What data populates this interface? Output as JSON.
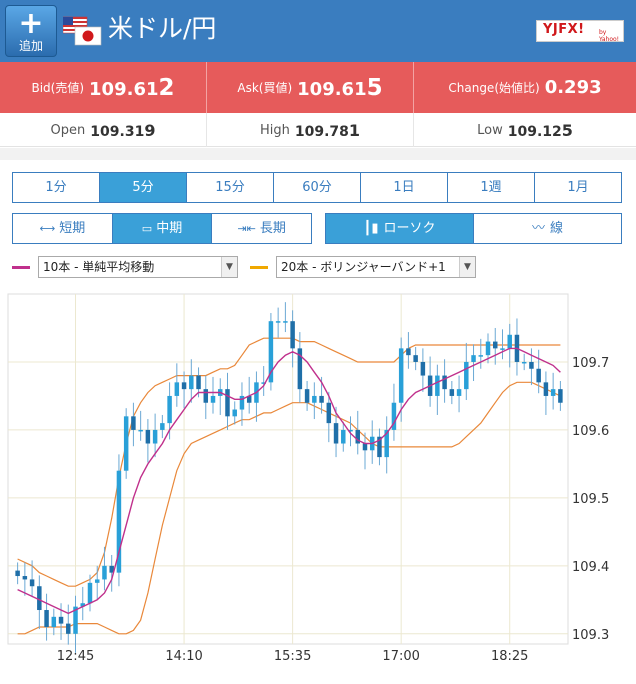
{
  "header": {
    "add_label": "追加",
    "pair_title": "米ドル/円",
    "logo_text": "YJFX!",
    "logo_sub": "by Yahoo!",
    "accent": "#3a7dbf"
  },
  "quote": {
    "bid_label": "Bid(売値)",
    "bid_main": "109.61",
    "bid_last": "2",
    "ask_label": "Ask(買値)",
    "ask_main": "109.61",
    "ask_last": "5",
    "change_label": "Change(始値比)",
    "change_value": "0.293",
    "band_color": "#e65b5b"
  },
  "stats": {
    "open_label": "Open",
    "open_main": "109.31",
    "open_last": "9",
    "high_label": "High",
    "high_main": "109.78",
    "high_last": "1",
    "low_label": "Low",
    "low_main": "109.12",
    "low_last": "5"
  },
  "timeframes": [
    {
      "label": "1分",
      "active": false
    },
    {
      "label": "5分",
      "active": true
    },
    {
      "label": "15分",
      "active": false
    },
    {
      "label": "60分",
      "active": false
    },
    {
      "label": "1日",
      "active": false
    },
    {
      "label": "1週",
      "active": false
    },
    {
      "label": "1月",
      "active": false
    }
  ],
  "terms": [
    {
      "label": "短期",
      "icon": "expand-arrows-icon",
      "active": false
    },
    {
      "label": "中期",
      "icon": "window-icon",
      "active": true
    },
    {
      "label": "長期",
      "icon": "collapse-arrows-icon",
      "active": false
    }
  ],
  "chart_types": [
    {
      "label": "ローソク",
      "icon": "candlestick-icon",
      "active": true
    },
    {
      "label": "線",
      "icon": "line-chart-icon",
      "active": false
    }
  ],
  "indicators": [
    {
      "value": "10本 - 単純平均移動",
      "color": "#c0308c"
    },
    {
      "value": "20本 - ボリンジャーバンド+1",
      "color": "#f0a800"
    }
  ],
  "chart_data": {
    "type": "candlestick",
    "xlabel": "",
    "ylabel": "",
    "x_ticks": [
      "12:45",
      "14:10",
      "15:35",
      "17:00",
      "18:25"
    ],
    "y_ticks": [
      "109.7",
      "109.6",
      "109.5",
      "109.4",
      "109.3"
    ],
    "ylim": [
      109.285,
      109.8
    ],
    "up_color": "#29a0d8",
    "down_color": "#1f6fa8",
    "ma_color": "#c0308c",
    "band_color": "#e9883a",
    "grid": true,
    "candles_close": [
      109.385,
      109.38,
      109.37,
      109.335,
      109.31,
      109.325,
      109.315,
      109.3,
      109.34,
      109.345,
      109.375,
      109.38,
      109.4,
      109.39,
      109.54,
      109.62,
      109.6,
      109.6,
      109.58,
      109.6,
      109.61,
      109.65,
      109.67,
      109.66,
      109.68,
      109.66,
      109.64,
      109.65,
      109.66,
      109.62,
      109.63,
      109.65,
      109.64,
      109.67,
      109.67,
      109.76,
      109.76,
      109.76,
      109.72,
      109.66,
      109.64,
      109.65,
      109.64,
      109.61,
      109.58,
      109.6,
      109.6,
      109.58,
      109.57,
      109.59,
      109.56,
      109.6,
      109.64,
      109.72,
      109.71,
      109.7,
      109.68,
      109.65,
      109.68,
      109.66,
      109.65,
      109.66,
      109.7,
      109.71,
      109.71,
      109.73,
      109.72,
      109.72,
      109.74,
      109.7,
      109.7,
      109.69,
      109.67,
      109.65,
      109.66,
      109.64
    ],
    "ma10": [
      109.365,
      109.36,
      109.355,
      109.35,
      109.345,
      109.34,
      109.335,
      109.33,
      109.335,
      109.34,
      109.345,
      109.35,
      109.36,
      109.38,
      109.42,
      109.46,
      109.5,
      109.53,
      109.55,
      109.565,
      109.58,
      109.6,
      109.615,
      109.63,
      109.645,
      109.655,
      109.655,
      109.655,
      109.655,
      109.65,
      109.645,
      109.645,
      109.65,
      109.655,
      109.665,
      109.685,
      109.7,
      109.71,
      109.715,
      109.71,
      109.7,
      109.685,
      109.67,
      109.65,
      109.625,
      109.61,
      109.595,
      109.585,
      109.58,
      109.58,
      109.585,
      109.595,
      109.61,
      109.63,
      109.645,
      109.655,
      109.66,
      109.665,
      109.67,
      109.675,
      109.68,
      109.685,
      109.69,
      109.695,
      109.7,
      109.705,
      109.71,
      109.715,
      109.72,
      109.72,
      109.715,
      109.71,
      109.705,
      109.7,
      109.695,
      109.685
    ],
    "band_upper": [
      109.41,
      109.405,
      109.4,
      109.39,
      109.385,
      109.38,
      109.375,
      109.37,
      109.37,
      109.375,
      109.38,
      109.39,
      109.42,
      109.47,
      109.53,
      109.58,
      109.62,
      109.64,
      109.655,
      109.665,
      109.67,
      109.675,
      109.68,
      109.68,
      109.68,
      109.68,
      109.68,
      109.685,
      109.69,
      109.69,
      109.695,
      109.71,
      109.725,
      109.73,
      109.735,
      109.735,
      109.735,
      109.735,
      109.735,
      109.73,
      109.73,
      109.73,
      109.725,
      109.72,
      109.715,
      109.71,
      109.705,
      109.7,
      109.7,
      109.7,
      109.7,
      109.7,
      109.7,
      109.71,
      109.72,
      109.725,
      109.725,
      109.725,
      109.725,
      109.725,
      109.725,
      109.725,
      109.725,
      109.725,
      109.725,
      109.725,
      109.725,
      109.725,
      109.725,
      109.725,
      109.725,
      109.725,
      109.725,
      109.725,
      109.725,
      109.725
    ],
    "band_lower": [
      109.3,
      109.3,
      109.305,
      109.31,
      109.31,
      109.31,
      109.31,
      109.31,
      109.315,
      109.315,
      109.315,
      109.315,
      109.31,
      109.305,
      109.3,
      109.3,
      109.305,
      109.32,
      109.36,
      109.41,
      109.46,
      109.5,
      109.54,
      109.565,
      109.58,
      109.585,
      109.59,
      109.595,
      109.6,
      109.605,
      109.61,
      109.615,
      109.615,
      109.62,
      109.625,
      109.625,
      109.63,
      109.635,
      109.64,
      109.64,
      109.64,
      109.635,
      109.63,
      109.625,
      109.62,
      109.615,
      109.61,
      109.6,
      109.59,
      109.58,
      109.575,
      109.575,
      109.575,
      109.575,
      109.575,
      109.575,
      109.575,
      109.575,
      109.575,
      109.575,
      109.575,
      109.58,
      109.59,
      109.6,
      109.61,
      109.625,
      109.64,
      109.655,
      109.665,
      109.67,
      109.67,
      109.67,
      109.665,
      109.66,
      109.655,
      109.65
    ]
  }
}
